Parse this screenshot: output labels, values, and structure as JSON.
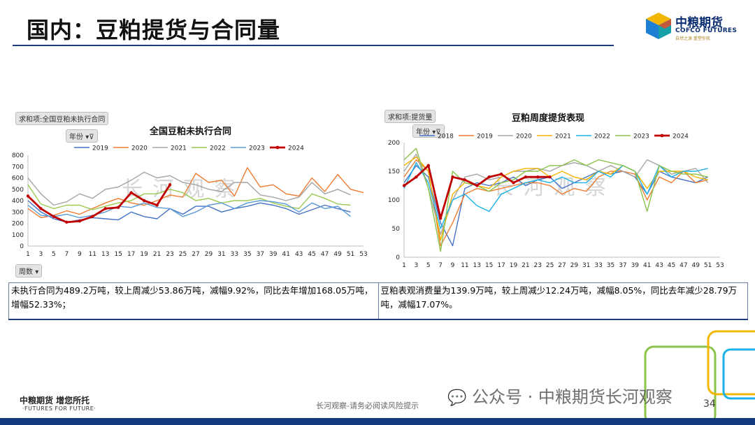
{
  "header": {
    "title": "国内：豆粕提货与合同量"
  },
  "logo": {
    "cn": "中粮期货",
    "en": "COFCO FUTURES",
    "tag": "自然之源  重塑你我"
  },
  "left_panel": {
    "pivot_label": "求和项:全国豆粕未执行合同",
    "filter_label": "年份",
    "axis_field_label": "周数",
    "title": "全国豆粕未执行合同",
    "watermark": "长河观察"
  },
  "right_panel": {
    "pivot_label": "求和项:提货量",
    "filter_label": "年份",
    "title": "豆粕周度提货表现",
    "watermark": "长河观察"
  },
  "chart_data": [
    {
      "type": "line",
      "title": "全国豆粕未执行合同",
      "x": [
        1,
        3,
        5,
        7,
        9,
        11,
        13,
        15,
        17,
        19,
        21,
        23,
        25,
        27,
        29,
        31,
        33,
        35,
        37,
        39,
        41,
        43,
        45,
        47,
        49,
        51,
        53
      ],
      "ylim": [
        0,
        800
      ],
      "yticks": [
        0,
        100,
        200,
        300,
        400,
        500,
        600,
        700,
        800
      ],
      "legend_position": "top",
      "series": [
        {
          "name": "2019",
          "color": "#4472c4",
          "values": [
            400,
            300,
            240,
            210,
            230,
            250,
            240,
            230,
            300,
            260,
            240,
            330,
            280,
            350,
            350,
            300,
            330,
            350,
            380,
            360,
            330,
            280,
            320,
            360,
            330,
            300,
            null
          ]
        },
        {
          "name": "2020",
          "color": "#ed7d31",
          "values": [
            330,
            250,
            270,
            310,
            280,
            330,
            380,
            420,
            380,
            360,
            400,
            450,
            430,
            640,
            560,
            580,
            440,
            690,
            520,
            540,
            460,
            440,
            600,
            480,
            630,
            500,
            470
          ]
        },
        {
          "name": "2021",
          "color": "#a5a5a5",
          "values": [
            600,
            460,
            360,
            390,
            460,
            420,
            500,
            520,
            580,
            650,
            600,
            620,
            560,
            540,
            500,
            480,
            560,
            560,
            450,
            430,
            400,
            430,
            560,
            460,
            500,
            450,
            null
          ]
        },
        {
          "name": "2022",
          "color": "#9bca52",
          "values": [
            540,
            370,
            330,
            360,
            360,
            320,
            350,
            380,
            400,
            460,
            460,
            500,
            470,
            400,
            420,
            380,
            400,
            400,
            420,
            380,
            350,
            330,
            460,
            420,
            370,
            360,
            null
          ]
        },
        {
          "name": "2023",
          "color": "#5b9bd5",
          "values": [
            360,
            270,
            260,
            280,
            250,
            270,
            300,
            350,
            340,
            380,
            340,
            330,
            260,
            300,
            360,
            380,
            330,
            380,
            400,
            390,
            370,
            300,
            380,
            330,
            350,
            260,
            null
          ]
        },
        {
          "name": "2024",
          "color": "#c00000",
          "values": [
            440,
            330,
            260,
            210,
            220,
            260,
            330,
            340,
            470,
            400,
            360,
            540,
            null,
            null,
            null,
            null,
            null,
            null,
            null,
            null,
            null,
            null,
            null,
            null,
            null,
            null,
            null
          ]
        }
      ]
    },
    {
      "type": "line",
      "title": "豆粕周度提货表现",
      "x": [
        1,
        3,
        5,
        7,
        9,
        11,
        13,
        15,
        17,
        19,
        21,
        23,
        25,
        27,
        29,
        31,
        33,
        35,
        37,
        39,
        41,
        43,
        45,
        47,
        49,
        51,
        53
      ],
      "ylim": [
        0,
        200
      ],
      "yticks": [
        0,
        50,
        100,
        150,
        200
      ],
      "legend_position": "top",
      "series": [
        {
          "name": "2018",
          "color": "#4472c4",
          "values": [
            130,
            160,
            140,
            60,
            20,
            120,
            130,
            125,
            130,
            140,
            125,
            135,
            140,
            120,
            130,
            140,
            150,
            145,
            150,
            140,
            110,
            150,
            140,
            135,
            130,
            140,
            null
          ]
        },
        {
          "name": "2019",
          "color": "#ed7d31",
          "values": [
            140,
            170,
            150,
            20,
            60,
            110,
            120,
            115,
            120,
            125,
            130,
            130,
            125,
            110,
            120,
            115,
            140,
            150,
            150,
            145,
            100,
            140,
            130,
            150,
            130,
            135,
            null
          ]
        },
        {
          "name": "2020",
          "color": "#a5a5a5",
          "values": [
            150,
            180,
            120,
            40,
            100,
            140,
            145,
            135,
            140,
            150,
            150,
            155,
            150,
            160,
            165,
            160,
            150,
            160,
            150,
            140,
            170,
            160,
            145,
            150,
            155,
            130,
            null
          ]
        },
        {
          "name": "2021",
          "color": "#f4b400",
          "values": [
            160,
            175,
            150,
            30,
            110,
            130,
            125,
            120,
            140,
            150,
            155,
            155,
            140,
            150,
            140,
            135,
            150,
            145,
            160,
            150,
            120,
            150,
            150,
            150,
            140,
            135,
            null
          ]
        },
        {
          "name": "2022",
          "color": "#1ab2e8",
          "values": [
            120,
            165,
            130,
            50,
            100,
            110,
            90,
            80,
            110,
            120,
            130,
            135,
            130,
            140,
            130,
            130,
            150,
            140,
            160,
            150,
            110,
            160,
            140,
            150,
            150,
            155,
            null
          ]
        },
        {
          "name": "2023",
          "color": "#8bc34a",
          "values": [
            170,
            190,
            120,
            10,
            150,
            130,
            125,
            115,
            130,
            135,
            150,
            150,
            160,
            160,
            170,
            160,
            170,
            165,
            160,
            150,
            80,
            160,
            150,
            145,
            145,
            140,
            null
          ]
        },
        {
          "name": "2024",
          "color": "#c00000",
          "values": [
            125,
            140,
            160,
            68,
            140,
            135,
            125,
            140,
            145,
            130,
            140,
            140,
            140,
            null,
            null,
            null,
            null,
            null,
            null,
            null,
            null,
            null,
            null,
            null,
            null,
            null,
            null
          ]
        }
      ]
    }
  ],
  "descriptions": {
    "left": "未执行合同为489.2万吨，较上周减少53.86万吨，减幅9.92%，同比去年增加168.05万吨，增幅52.33%；",
    "right": "豆粕表观消费量为139.9万吨，较上周减少12.24万吨，减幅8.05%，同比去年减少28.79万吨，减幅17.07%。"
  },
  "footer": {
    "company": "中粮期货  增您所托",
    "company_en": "·FUTURES FOR FUTURE·",
    "note": "长河观察-请务必阅读风险提示",
    "wechat": "公众号 · 中粮期货长河观察",
    "page": "34"
  },
  "colors": {
    "brand_blue": "#123a7d",
    "accent_gold": "#b08a2e"
  }
}
